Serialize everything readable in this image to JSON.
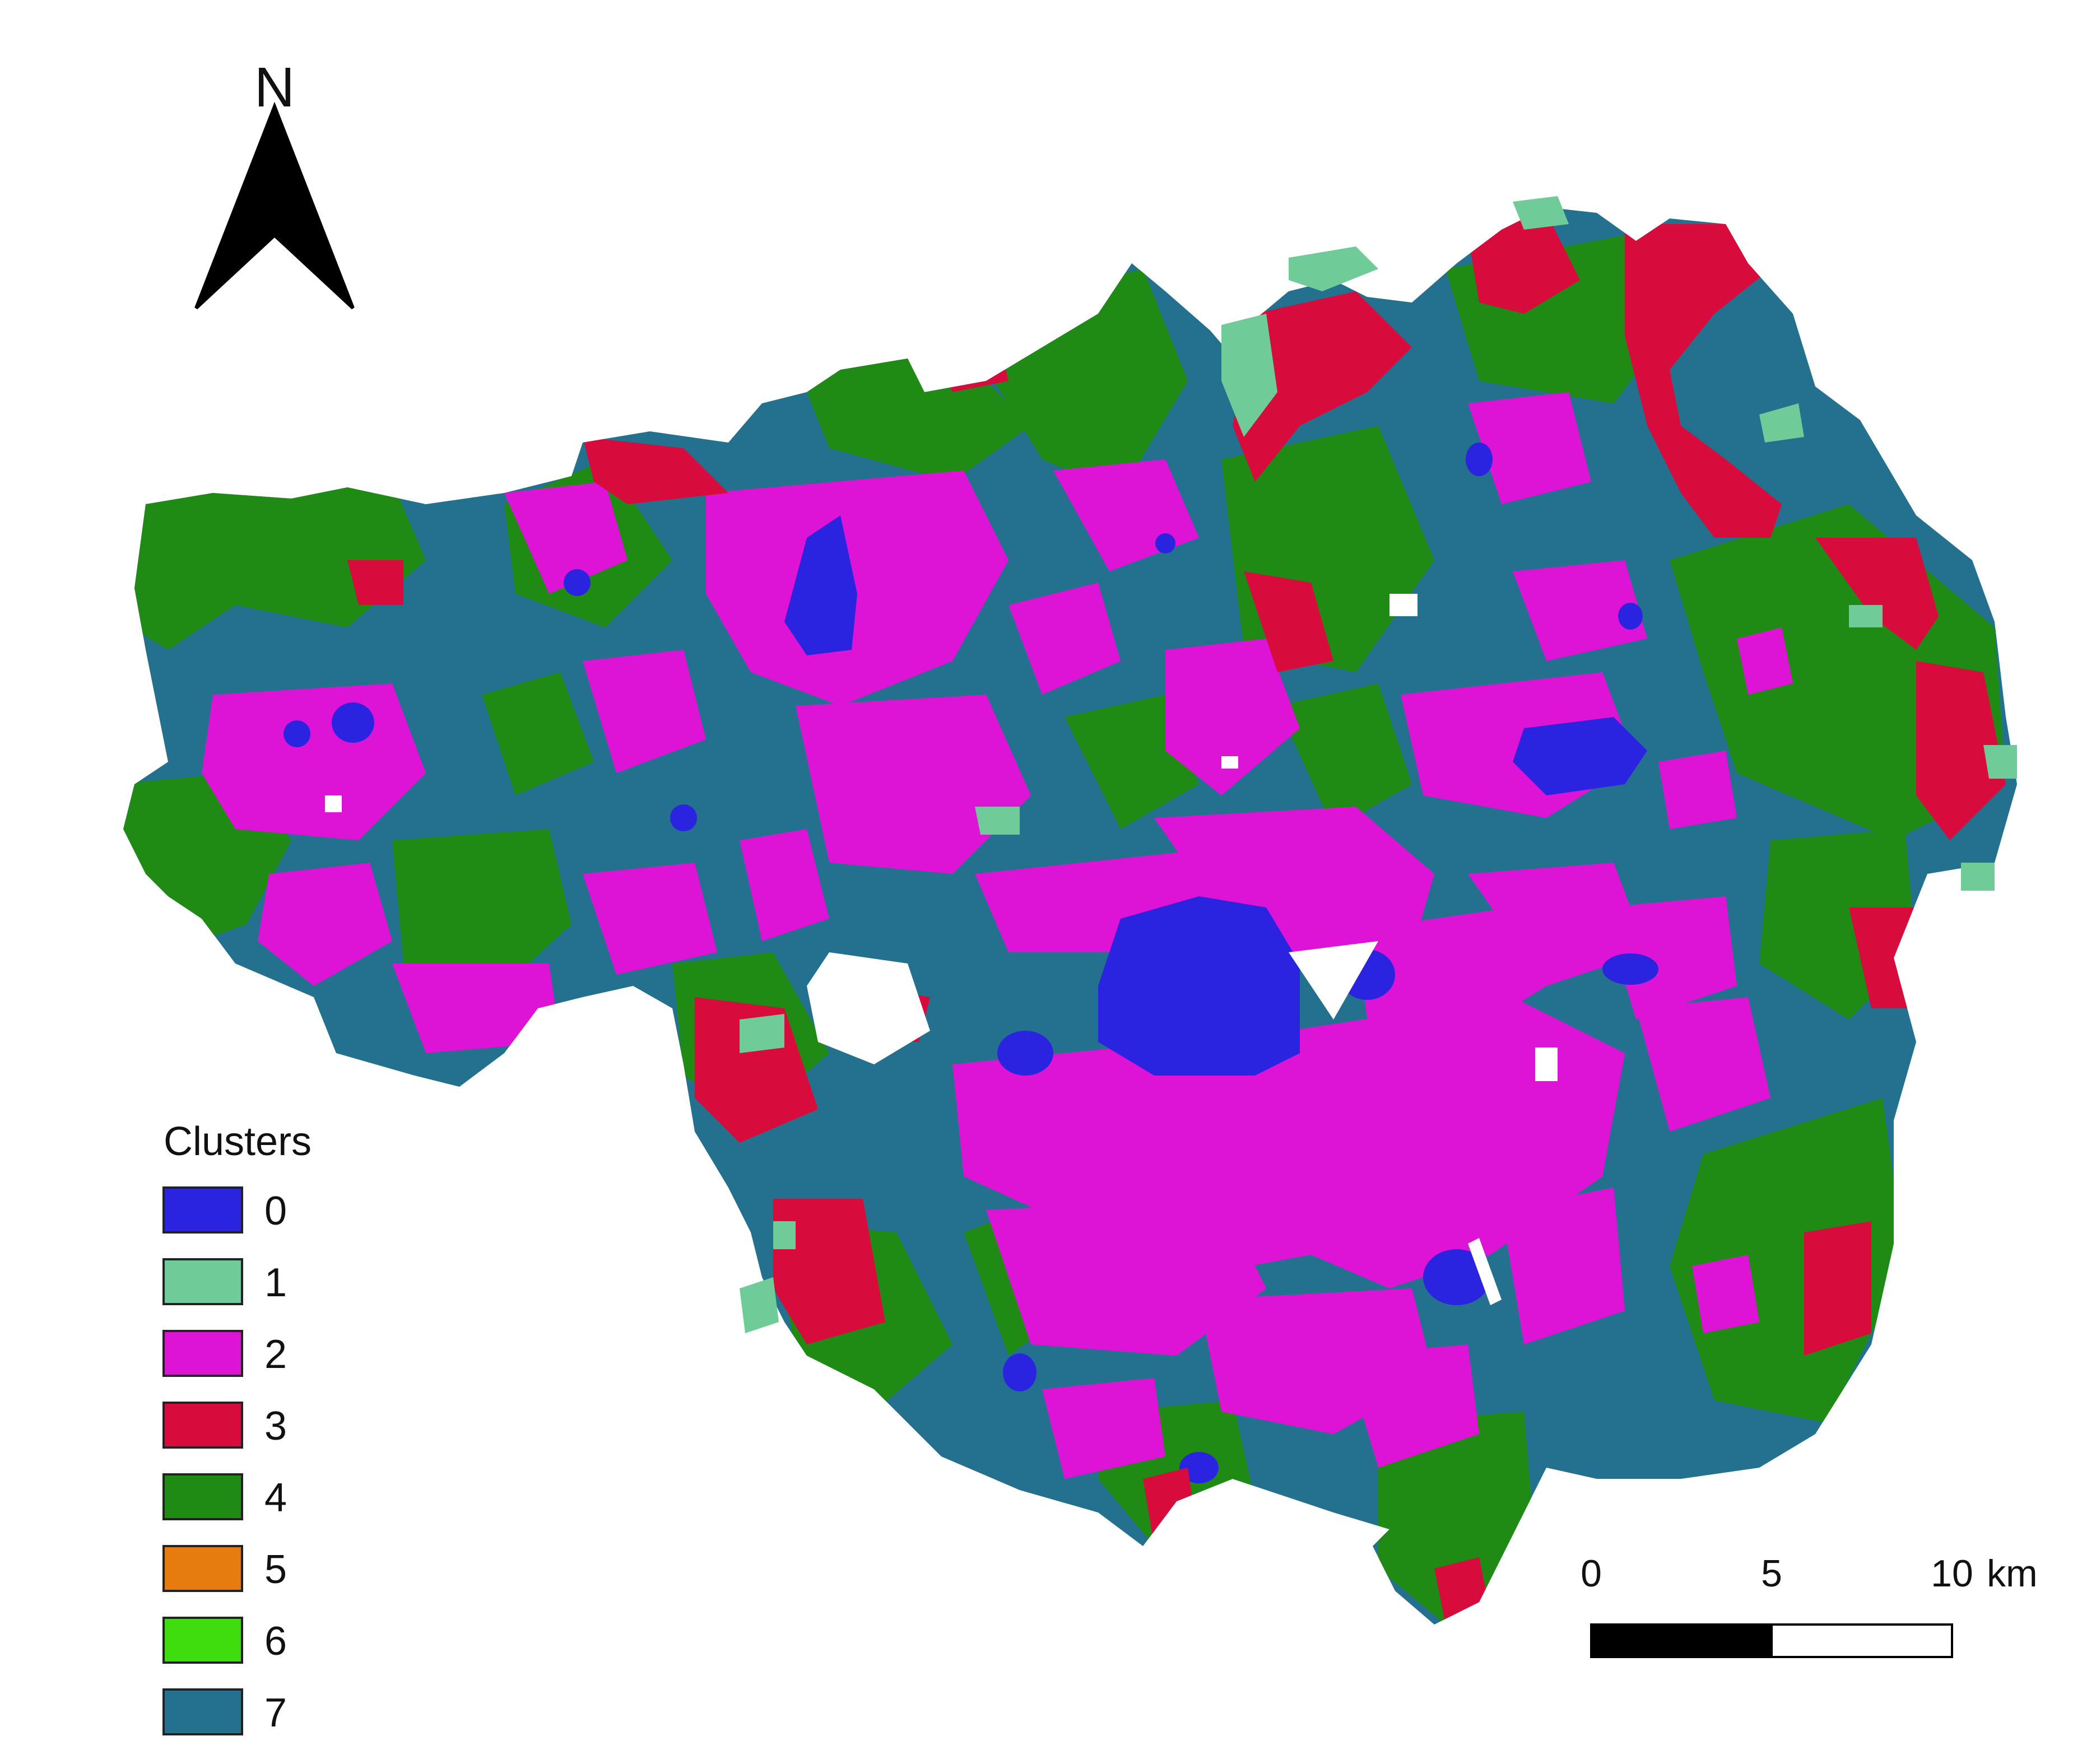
{
  "north_arrow": {
    "label": "N"
  },
  "legend": {
    "title": "Clusters",
    "items": [
      {
        "label": "0",
        "color": "#2a24e0"
      },
      {
        "label": "1",
        "color": "#6fcb98"
      },
      {
        "label": "2",
        "color": "#dd14d5"
      },
      {
        "label": "3",
        "color": "#d80c3c"
      },
      {
        "label": "4",
        "color": "#1f8a14"
      },
      {
        "label": "5",
        "color": "#e67c0f"
      },
      {
        "label": "6",
        "color": "#3fdc0e"
      },
      {
        "label": "7",
        "color": "#23708f"
      }
    ]
  },
  "scale_bar": {
    "labels": [
      "0",
      "5",
      "10"
    ],
    "unit": "km"
  }
}
